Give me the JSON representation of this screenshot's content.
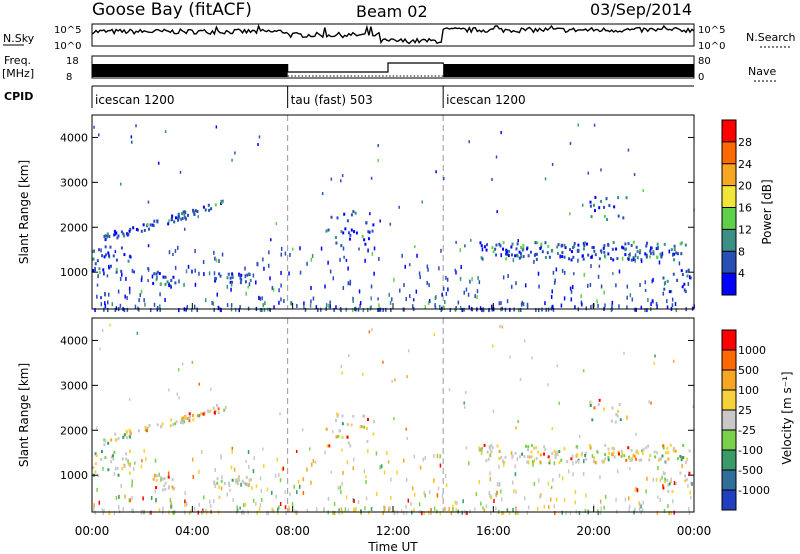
{
  "header": {
    "station": "Goose Bay (fitACF)",
    "beam": "Beam 02",
    "date": "03/Sep/2014"
  },
  "summary_panels": {
    "nsky_label": "N.Sky",
    "nsky_ticks": [
      "10^5",
      "10^0"
    ],
    "nsearch_label": "N.Search",
    "nsearch_ticks": [
      "10^5",
      "10^0"
    ],
    "freq_label_1": "Freq.",
    "freq_label_2": "[MHz]",
    "freq_ticks": [
      "18",
      "8"
    ],
    "nave_label": "Nave",
    "nave_ticks": [
      "80",
      "0"
    ],
    "cpid_label": "CPID",
    "cpid_segments": [
      {
        "label": "icescan 1200",
        "start": 0,
        "end": 7.8
      },
      {
        "label": "tau (fast) 503",
        "start": 7.8,
        "end": 14.0
      },
      {
        "label": "icescan 1200",
        "start": 14.0,
        "end": 24
      }
    ]
  },
  "chart_data": [
    {
      "type": "heatmap",
      "name": "power",
      "ylabel": "Slant Range [km]",
      "yticks": [
        "1000",
        "2000",
        "3000",
        "4000"
      ],
      "ylim": [
        180,
        4500
      ],
      "colorbar_label": "Power [dB]",
      "colorbar_ticks": [
        "4",
        "8",
        "12",
        "16",
        "20",
        "24",
        "28"
      ],
      "colors": [
        "#0000ff",
        "#2a4fb5",
        "#3b8f84",
        "#5fd04a",
        "#f2e53a",
        "#f5a623",
        "#ff6a00",
        "#ff0000"
      ]
    },
    {
      "type": "heatmap",
      "name": "velocity",
      "ylabel": "Slant Range [km]",
      "yticks": [
        "1000",
        "2000",
        "3000",
        "4000"
      ],
      "ylim": [
        180,
        4500
      ],
      "colorbar_label": "Velocity [m s⁻¹]",
      "colorbar_ticks": [
        "1000",
        "500",
        "100",
        "25",
        "-25",
        "-100",
        "-500",
        "-1000"
      ],
      "colors": [
        "#1f3fbf",
        "#2f6f9a",
        "#3b9a6a",
        "#7ad04a",
        "#c8c8c8",
        "#f5d23a",
        "#f5a623",
        "#ff6a00",
        "#ff0000"
      ]
    }
  ],
  "x_axis": {
    "label": "Time UT",
    "ticks": [
      "00:00",
      "04:00",
      "08:00",
      "12:00",
      "16:00",
      "20:00",
      "00:00"
    ],
    "range_hours": [
      0,
      24
    ]
  },
  "scatter_features": [
    {
      "t0": 0.0,
      "t1": 1.5,
      "r0": 1000,
      "r1": 1600,
      "density": 0.55
    },
    {
      "t0": 0.4,
      "t1": 5.3,
      "r0": 1700,
      "r1": 2550,
      "density": 0.45,
      "slope": true
    },
    {
      "t0": 2.3,
      "t1": 3.3,
      "r0": 700,
      "r1": 1050,
      "density": 0.5
    },
    {
      "t0": 4.8,
      "t1": 6.3,
      "r0": 800,
      "r1": 1000,
      "density": 0.5
    },
    {
      "t0": 9.3,
      "t1": 11.2,
      "r0": 1600,
      "r1": 2400,
      "density": 0.45
    },
    {
      "t0": 15.4,
      "t1": 23.8,
      "r0": 1300,
      "r1": 1700,
      "density": 0.55
    },
    {
      "t0": 19.8,
      "t1": 21.3,
      "r0": 2200,
      "r1": 2700,
      "density": 0.35
    },
    {
      "t0": 22.7,
      "t1": 23.9,
      "r0": 600,
      "r1": 1100,
      "density": 0.4
    }
  ]
}
